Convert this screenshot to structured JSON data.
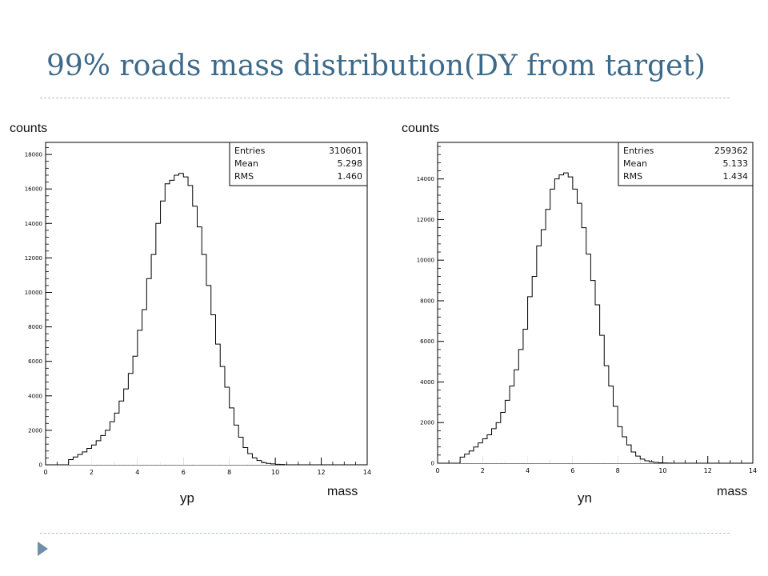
{
  "slide": {
    "title": "99% roads mass distribution(DY from target)"
  },
  "chart_data": [
    {
      "type": "histogram",
      "name_label": "yp",
      "xlabel": "mass",
      "ylabel": "counts",
      "xlim": [
        0,
        14
      ],
      "ylim": [
        0,
        18700
      ],
      "xticks": [
        0,
        2,
        4,
        6,
        8,
        10,
        12,
        14
      ],
      "yticks": [
        0,
        2000,
        4000,
        6000,
        8000,
        10000,
        12000,
        14000,
        16000,
        18000
      ],
      "bin_width": 0.2,
      "stats": [
        {
          "label": "Entries",
          "value": "310601"
        },
        {
          "label": "Mean",
          "value": "5.298"
        },
        {
          "label": "RMS",
          "value": "1.460"
        }
      ],
      "x": [
        1.0,
        1.2,
        1.4,
        1.6,
        1.8,
        2.0,
        2.2,
        2.4,
        2.6,
        2.8,
        3.0,
        3.2,
        3.4,
        3.6,
        3.8,
        4.0,
        4.2,
        4.4,
        4.6,
        4.8,
        5.0,
        5.2,
        5.4,
        5.6,
        5.8,
        6.0,
        6.2,
        6.4,
        6.6,
        6.8,
        7.0,
        7.2,
        7.4,
        7.6,
        7.8,
        8.0,
        8.2,
        8.4,
        8.6,
        8.8,
        9.0,
        9.2,
        9.4,
        9.6,
        9.8,
        10.0,
        10.2
      ],
      "values": [
        300,
        450,
        600,
        750,
        950,
        1150,
        1400,
        1700,
        2000,
        2500,
        3000,
        3700,
        4400,
        5300,
        6300,
        7800,
        9000,
        10800,
        12200,
        14000,
        15300,
        16300,
        16500,
        16800,
        16900,
        16700,
        16200,
        15000,
        13800,
        12200,
        10400,
        8700,
        7000,
        5700,
        4500,
        3300,
        2300,
        1600,
        1000,
        650,
        400,
        250,
        130,
        80,
        50,
        30,
        15
      ]
    },
    {
      "type": "histogram",
      "name_label": "yn",
      "xlabel": "mass",
      "ylabel": "counts",
      "xlim": [
        0,
        14
      ],
      "ylim": [
        0,
        15800
      ],
      "xticks": [
        0,
        2,
        4,
        6,
        8,
        10,
        12,
        14
      ],
      "yticks": [
        0,
        2000,
        4000,
        6000,
        8000,
        10000,
        12000,
        14000
      ],
      "bin_width": 0.2,
      "stats": [
        {
          "label": "Entries",
          "value": "259362"
        },
        {
          "label": "Mean",
          "value": "5.133"
        },
        {
          "label": "RMS",
          "value": "1.434"
        }
      ],
      "x": [
        1.0,
        1.2,
        1.4,
        1.6,
        1.8,
        2.0,
        2.2,
        2.4,
        2.6,
        2.8,
        3.0,
        3.2,
        3.4,
        3.6,
        3.8,
        4.0,
        4.2,
        4.4,
        4.6,
        4.8,
        5.0,
        5.2,
        5.4,
        5.6,
        5.8,
        6.0,
        6.2,
        6.4,
        6.6,
        6.8,
        7.0,
        7.2,
        7.4,
        7.6,
        7.8,
        8.0,
        8.2,
        8.4,
        8.6,
        8.8,
        9.0,
        9.2,
        9.4,
        9.6,
        9.8,
        10.0,
        10.2
      ],
      "values": [
        300,
        450,
        600,
        800,
        1000,
        1200,
        1400,
        1700,
        2000,
        2500,
        3100,
        3800,
        4600,
        5600,
        6600,
        8200,
        9200,
        10700,
        11500,
        12500,
        13500,
        14000,
        14200,
        14300,
        14100,
        13500,
        12800,
        11600,
        10300,
        9000,
        7800,
        6300,
        4800,
        3800,
        2800,
        1800,
        1300,
        900,
        550,
        350,
        200,
        120,
        70,
        40,
        20,
        10,
        5
      ]
    }
  ]
}
